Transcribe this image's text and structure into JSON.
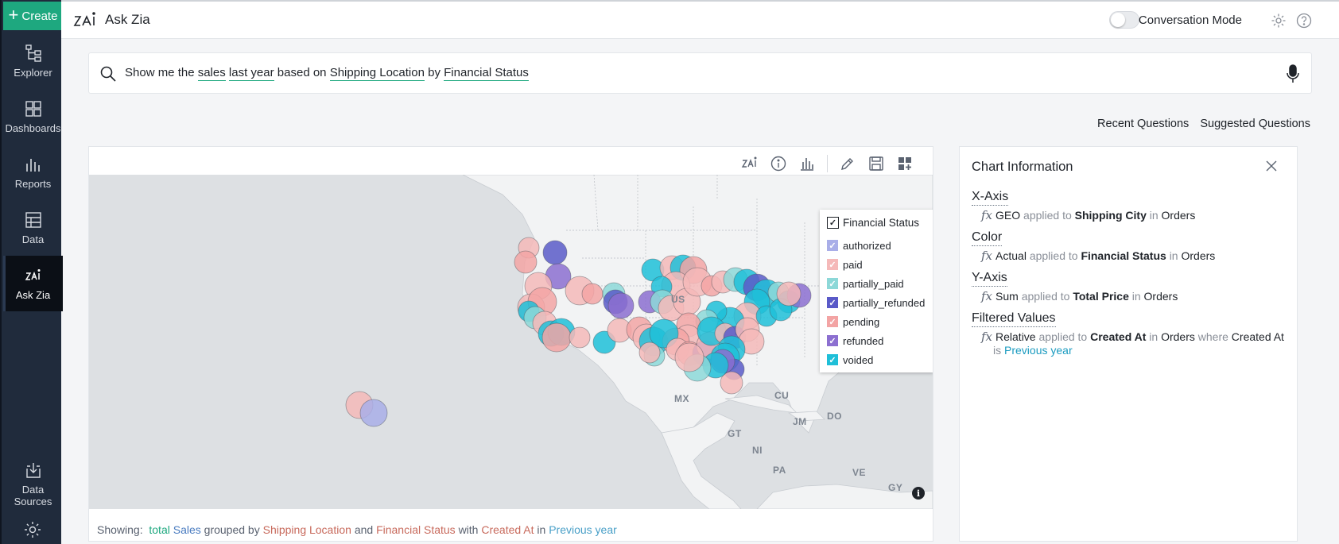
{
  "sidebar": {
    "create_label": "Create",
    "items": [
      {
        "label": "Explorer",
        "icon": "explorer-icon"
      },
      {
        "label": "Dashboards",
        "icon": "dashboards-icon"
      },
      {
        "label": "Reports",
        "icon": "reports-icon"
      },
      {
        "label": "Data",
        "icon": "data-icon"
      },
      {
        "label": "Ask Zia",
        "icon": "ask-zia-icon",
        "active": true
      },
      {
        "label": "Data\nSources",
        "icon": "data-sources-icon"
      }
    ]
  },
  "header": {
    "title": "Ask Zia",
    "conversation_mode_label": "Conversation Mode",
    "conversation_mode_on": false
  },
  "search": {
    "parts": [
      "Show me the ",
      "sales",
      " ",
      "last year",
      " based on ",
      "Shipping Location",
      " by ",
      "Financial Status"
    ]
  },
  "questions": {
    "recent_label": "Recent Questions",
    "suggested_label": "Suggested Questions"
  },
  "chart": {
    "legend": {
      "title": "Financial Status",
      "items": [
        {
          "label": "authorized",
          "color": "#a9aee8"
        },
        {
          "label": "paid",
          "color": "#f5b9b9"
        },
        {
          "label": "partially_paid",
          "color": "#8dd8d8"
        },
        {
          "label": "partially_refunded",
          "color": "#5a5ac8"
        },
        {
          "label": "pending",
          "color": "#f3a4a4"
        },
        {
          "label": "refunded",
          "color": "#8c6fd0"
        },
        {
          "label": "voided",
          "color": "#1fbfd8"
        }
      ]
    },
    "map_labels": [
      "US",
      "MX",
      "CU",
      "DO",
      "JM",
      "GT",
      "NI",
      "PA",
      "VE",
      "GY"
    ],
    "showing": {
      "prefix": "Showing:",
      "total": "total",
      "measure": "Sales",
      "grouped_by": "grouped by",
      "dim1": "Shipping Location",
      "and": "and",
      "dim2": "Financial Status",
      "with": "with",
      "filter_field": "Created At",
      "in": "in",
      "filter_value": "Previous year"
    }
  },
  "info": {
    "title": "Chart Information",
    "sections": [
      {
        "title": "X-Axis",
        "fn": "GEO",
        "applied": "applied to",
        "field": "Shipping City",
        "in": "in",
        "entity": "Orders"
      },
      {
        "title": "Color",
        "fn": "Actual",
        "applied": "applied to",
        "field": "Financial Status",
        "in": "in",
        "entity": "Orders"
      },
      {
        "title": "Y-Axis",
        "fn": "Sum",
        "applied": "applied to",
        "field": "Total Price",
        "in": "in",
        "entity": "Orders"
      },
      {
        "title": "Filtered Values",
        "fn": "Relative",
        "applied": "applied to",
        "field": "Created At",
        "in": "in",
        "entity": "Orders",
        "where": "where",
        "where_field": "Created At",
        "is": "is",
        "value": "Previous year"
      }
    ]
  }
}
